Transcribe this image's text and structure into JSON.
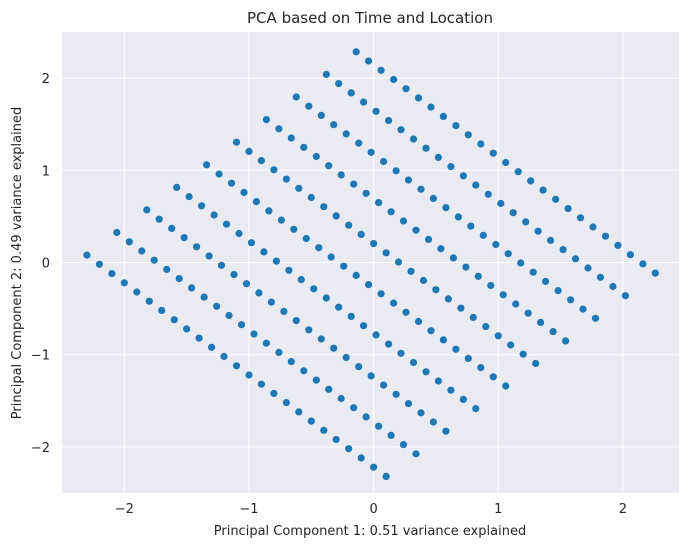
{
  "chart_data": {
    "type": "scatter",
    "title": "PCA based on Time and Location",
    "xlabel": "Principal Component 1: 0.51 variance explained",
    "ylabel": "Principal Component 2: 0.49 variance explained",
    "xlim": [
      -2.5,
      2.45
    ],
    "ylim": [
      -2.5,
      2.5
    ],
    "xticks": [
      -2,
      -1,
      0,
      1,
      2
    ],
    "yticks": [
      -2,
      -1,
      0,
      1,
      2
    ],
    "grid": true,
    "background": "#eaeaf2",
    "point_color": "#1f77b4",
    "lattice": {
      "rows": 10,
      "cols": 25,
      "origin": [
        -2.3,
        0.08
      ],
      "col_step": [
        0.1,
        -0.1
      ],
      "row_step": [
        0.24,
        0.245
      ]
    }
  }
}
